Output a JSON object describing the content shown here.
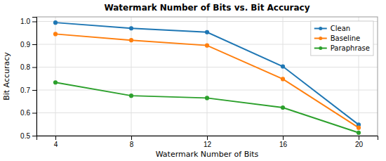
{
  "chart_data": {
    "type": "line",
    "title": "Watermark Number of Bits vs. Bit Accuracy",
    "xlabel": "Watermark Number of Bits",
    "ylabel": "Bit Accuracy",
    "x": [
      4,
      8,
      12,
      16,
      20
    ],
    "series": [
      {
        "name": "Clean",
        "color": "#1f77b4",
        "values": [
          0.995,
          0.97,
          0.953,
          0.803,
          0.548
        ]
      },
      {
        "name": "Baseline",
        "color": "#ff7f0e",
        "values": [
          0.945,
          0.918,
          0.895,
          0.748,
          0.535
        ]
      },
      {
        "name": "Paraphrase",
        "color": "#2ca02c",
        "values": [
          0.733,
          0.675,
          0.665,
          0.623,
          0.513
        ]
      }
    ],
    "xlim": [
      3.0,
      21.0
    ],
    "ylim": [
      0.5,
      1.02
    ],
    "xticks": [
      4,
      8,
      12,
      16,
      20
    ],
    "yticks": [
      0.5,
      0.6,
      0.7,
      0.8,
      0.9,
      {
        "value": 1.0,
        "label": "1.0"
      }
    ],
    "marker": "circle",
    "grid": true,
    "legend": "upper-right"
  }
}
